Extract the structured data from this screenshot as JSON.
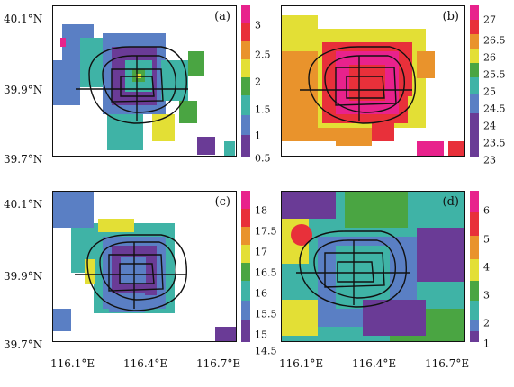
{
  "axes": {
    "y_ticks": [
      "40.1°N",
      "39.9°N",
      "39.7°N"
    ],
    "x_ticks": [
      "116.1°E",
      "116.4°E",
      "116.7°E"
    ]
  },
  "panels": [
    {
      "label": "(a)",
      "colorbar_ticks": [
        "3",
        "2.5",
        "2",
        "1.5",
        "1",
        "0.5"
      ]
    },
    {
      "label": "(b)",
      "colorbar_ticks": [
        "27",
        "26.5",
        "26",
        "25.5",
        "25",
        "24.5",
        "24",
        "23.5",
        "23"
      ]
    },
    {
      "label": "(c)",
      "colorbar_ticks": [
        "18",
        "17.5",
        "17",
        "16.5",
        "16",
        "15.5",
        "15",
        "14.5"
      ]
    },
    {
      "label": "(d)",
      "colorbar_ticks": [
        "6",
        "5",
        "4",
        "3",
        "2",
        "1"
      ]
    }
  ],
  "colors": {
    "magenta": "#e8228c",
    "red": "#e8303a",
    "orange": "#e9932c",
    "yellow": "#e3df35",
    "green": "#4aa542",
    "teal": "#3fb3a6",
    "blue": "#5a7fc4",
    "purple": "#6a3b96"
  }
}
